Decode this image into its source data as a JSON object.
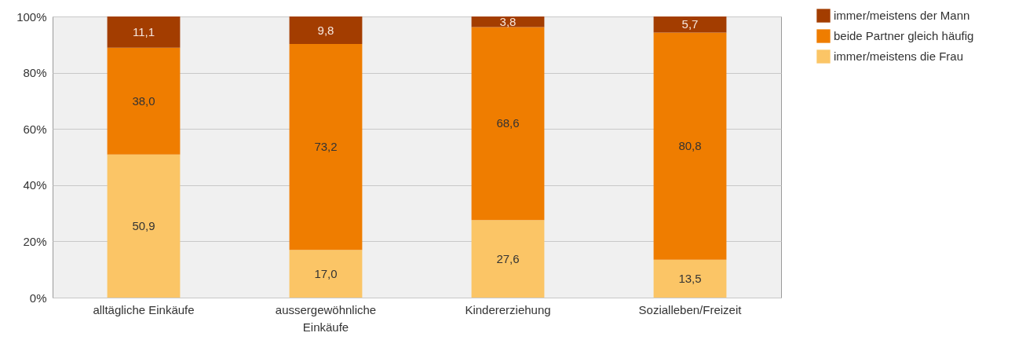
{
  "chart_data": {
    "type": "bar",
    "stacked": true,
    "categories": [
      "alltägliche Einkäufe",
      "aussergewöhnliche Einkäufe",
      "Kindererziehung",
      "Sozialleben/Freizeit"
    ],
    "series": [
      {
        "name": "immer/meistens die Frau",
        "color": "#fbc566",
        "values": [
          50.9,
          17.0,
          27.6,
          13.5
        ],
        "value_labels": [
          "50,9",
          "17,0",
          "27,6",
          "13,5"
        ]
      },
      {
        "name": "beide Partner gleich häufig",
        "color": "#ef7d00",
        "values": [
          38.0,
          73.2,
          68.6,
          80.8
        ],
        "value_labels": [
          "38,0",
          "73,2",
          "68,6",
          "80,8"
        ]
      },
      {
        "name": "immer/meistens der Mann",
        "color": "#a33d00",
        "values": [
          11.1,
          9.8,
          3.8,
          5.7
        ],
        "value_labels": [
          "11,1",
          "9,8",
          "3,8",
          "5,7"
        ]
      }
    ],
    "ylim": [
      0,
      100
    ],
    "yticks": [
      {
        "value": 0,
        "label": "0%"
      },
      {
        "value": 20,
        "label": "20%"
      },
      {
        "value": 40,
        "label": "40%"
      },
      {
        "value": 60,
        "label": "60%"
      },
      {
        "value": 80,
        "label": "80%"
      },
      {
        "value": 100,
        "label": "100%"
      }
    ],
    "grid": "y",
    "legend": "right"
  }
}
